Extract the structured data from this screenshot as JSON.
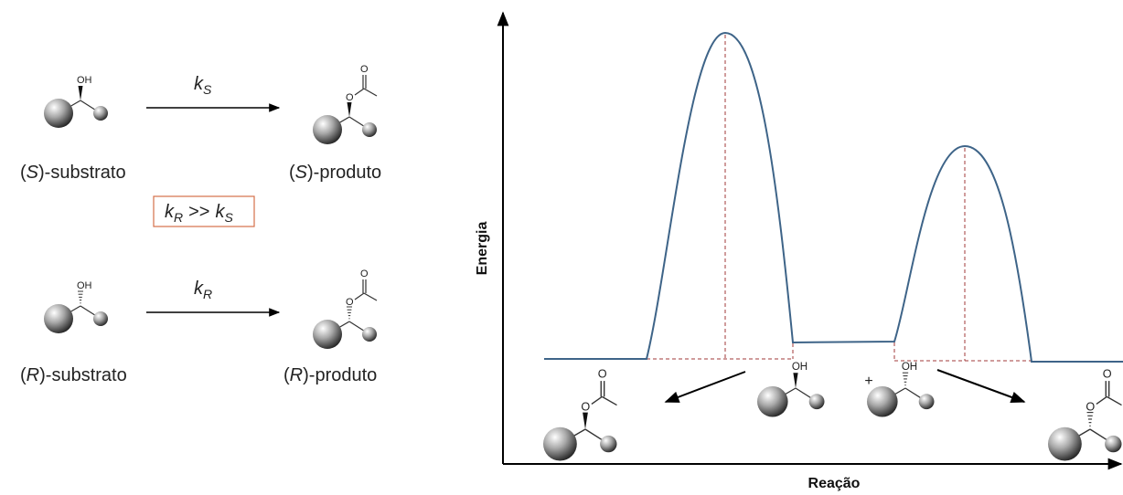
{
  "reactions": [
    {
      "rate": {
        "symbol": "k",
        "subscript": "S"
      },
      "substrate": {
        "open": "(",
        "config": "S",
        "suffix": ")-substrato"
      },
      "product": {
        "open": "(",
        "config": "S",
        "suffix": ")-produto"
      }
    },
    {
      "rate": {
        "symbol": "k",
        "subscript": "R"
      },
      "substrate": {
        "open": "(",
        "config": "R",
        "suffix": ")-substrato"
      },
      "product": {
        "open": "(",
        "config": "R",
        "suffix": ")-produto"
      }
    }
  ],
  "comparison": {
    "left": {
      "symbol": "k",
      "subscript": "R"
    },
    "operator": ">>",
    "right": {
      "symbol": "k",
      "subscript": "S"
    }
  },
  "atoms": {
    "hydroxyl": "OH",
    "oxygen": "O"
  },
  "chart": {
    "y_axis_label": "Energia",
    "x_axis_label": "Reação",
    "plus": "+"
  }
}
